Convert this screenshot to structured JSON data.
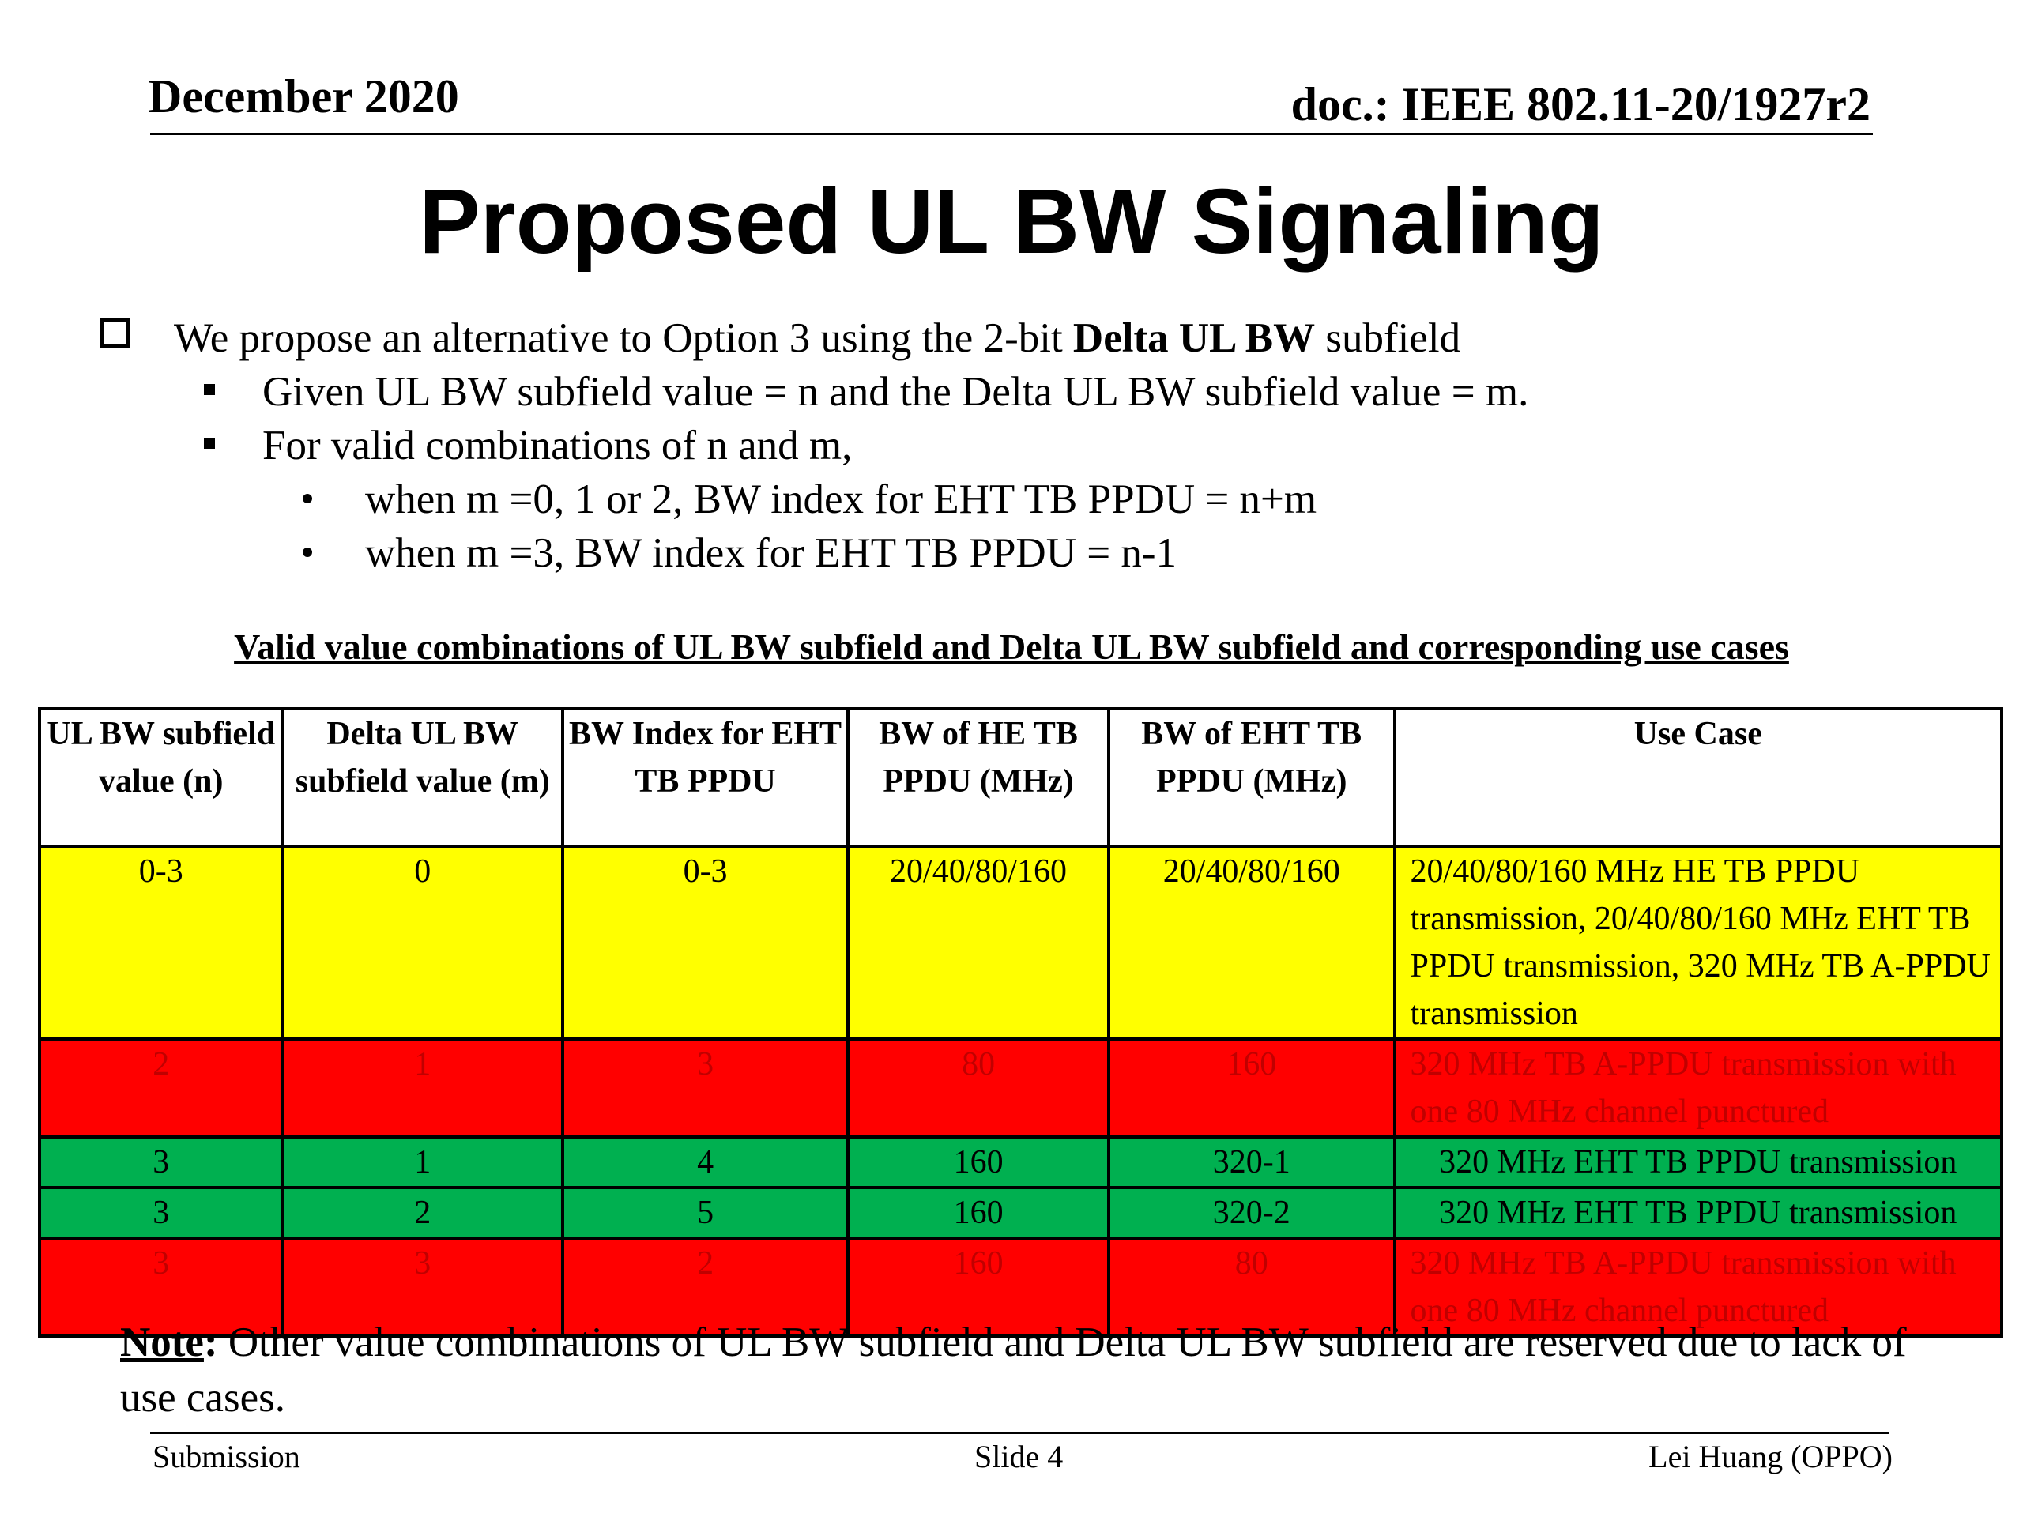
{
  "header": {
    "date": "December 2020",
    "doc": "doc.: IEEE 802.11-20/1927r2"
  },
  "title": "Proposed UL BW Signaling",
  "bullets": {
    "b1_pre": "We propose an alternative to Option 3 using the 2-bit ",
    "b1_bold": "Delta UL BW",
    "b1_post": " subfield",
    "b2": "Given UL BW subfield value = n and the Delta UL BW subfield value = m.",
    "b3": "For valid combinations of n and m,",
    "b4": "when m =0, 1 or 2, BW index for EHT TB PPDU = n+m",
    "b5": "when m =3, BW index for EHT TB PPDU = n-1"
  },
  "caption": "Valid value combinations of UL BW subfield and Delta UL BW subfield and corresponding use cases",
  "table": {
    "headers": {
      "h1": "UL BW subfield value (n)",
      "h2": "Delta UL BW subfield value (m)",
      "h3": "BW Index for EHT TB PPDU",
      "h4": "BW of HE TB PPDU (MHz)",
      "h5": "BW of EHT TB PPDU (MHz)",
      "h6": "Use Case"
    },
    "rows": [
      {
        "color": "#ffff00",
        "n": "0-3",
        "m": "0",
        "idx": "0-3",
        "he": "20/40/80/160",
        "eht": "20/40/80/160",
        "use": "20/40/80/160 MHz HE TB PPDU transmission, 20/40/80/160 MHz EHT TB PPDU transmission, 320 MHz TB A-PPDU transmission"
      },
      {
        "color": "#ff0000",
        "n": "2",
        "m": "1",
        "idx": "3",
        "he": "80",
        "eht": "160",
        "use": "320 MHz TB A-PPDU transmission with one 80 MHz channel punctured"
      },
      {
        "color": "#00b050",
        "n": "3",
        "m": "1",
        "idx": "4",
        "he": "160",
        "eht": "320-1",
        "use": "320 MHz EHT TB PPDU transmission"
      },
      {
        "color": "#00b050",
        "n": "3",
        "m": "2",
        "idx": "5",
        "he": "160",
        "eht": "320-2",
        "use": "320 MHz EHT TB PPDU transmission"
      },
      {
        "color": "#ff0000",
        "n": "3",
        "m": "3",
        "idx": "2",
        "he": "160",
        "eht": "80",
        "use": "320 MHz TB A-PPDU transmission with one 80 MHz channel punctured"
      }
    ]
  },
  "note": {
    "label": "Note",
    "text": " Other value combinations of UL BW subfield and Delta UL BW subfield are reserved due to lack of use cases."
  },
  "footer": {
    "left": "Submission",
    "center": "Slide 4",
    "right": "Lei Huang (OPPO)"
  }
}
